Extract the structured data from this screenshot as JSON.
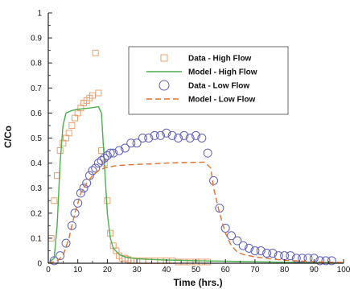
{
  "chart_data": {
    "type": "scatter",
    "xlabel": "Time (hrs.)",
    "ylabel": "C/Co",
    "xlim": [
      0,
      100
    ],
    "ylim": [
      0,
      1
    ],
    "x_ticks": [
      0,
      10,
      20,
      30,
      40,
      50,
      60,
      70,
      80,
      90,
      100
    ],
    "y_ticks": [
      0,
      0.1,
      0.2,
      0.3,
      0.4,
      0.5,
      0.6,
      0.7,
      0.8,
      0.9,
      1
    ],
    "x_tick_labels": [
      "0",
      "10",
      "20",
      "30",
      "40",
      "50",
      "60",
      "70",
      "80",
      "90",
      "100"
    ],
    "y_tick_labels": [
      "0",
      "0.1",
      "0.2",
      "0.3",
      "0.4",
      "0.5",
      "0.6",
      "0.7",
      "0.8",
      "0.9",
      "1"
    ],
    "grid": false,
    "legend_position": "top-right",
    "series": [
      {
        "name": "Data - High Flow",
        "kind": "scatter",
        "marker": "square",
        "color": "#e8a070",
        "x": [
          1,
          2,
          3,
          4,
          5,
          6,
          7,
          8,
          9,
          10,
          11,
          12,
          13,
          14,
          15,
          16,
          17,
          18,
          19,
          20,
          21,
          22,
          23,
          24,
          25,
          26,
          27,
          28,
          29,
          30,
          32,
          34,
          36,
          38,
          40,
          42,
          44,
          46,
          48,
          50,
          52,
          54
        ],
        "y": [
          0.1,
          0.25,
          0.35,
          0.45,
          0.48,
          0.5,
          0.52,
          0.55,
          0.58,
          0.6,
          0.62,
          0.64,
          0.65,
          0.66,
          0.67,
          0.84,
          0.68,
          0.45,
          0.4,
          0.25,
          0.12,
          0.07,
          0.05,
          0.03,
          0.02,
          0.02,
          0.015,
          0.01,
          0.01,
          0.01,
          0.01,
          0.01,
          0.01,
          0.01,
          0.01,
          0.01,
          0.005,
          0.005,
          0.005,
          0.005,
          0.005,
          0.005
        ]
      },
      {
        "name": "Model - High Flow",
        "kind": "line",
        "dash": "solid",
        "color": "#4caf50",
        "x": [
          0,
          2,
          3,
          4,
          5,
          6,
          8,
          10,
          14,
          17,
          18,
          19,
          20,
          21,
          22,
          24,
          26,
          30,
          35,
          40,
          50,
          60,
          70,
          80,
          90,
          100
        ],
        "y": [
          0,
          0.02,
          0.15,
          0.4,
          0.55,
          0.6,
          0.61,
          0.615,
          0.62,
          0.625,
          0.6,
          0.4,
          0.2,
          0.1,
          0.06,
          0.035,
          0.025,
          0.018,
          0.015,
          0.013,
          0.01,
          0.008,
          0.006,
          0.004,
          0.003,
          0.002
        ]
      },
      {
        "name": "Data - Low Flow",
        "kind": "scatter",
        "marker": "circle",
        "color": "#6060b8",
        "x": [
          2,
          4,
          6,
          8,
          9,
          10,
          11,
          12,
          13,
          14,
          15,
          16,
          17,
          18,
          19,
          20,
          21,
          22,
          24,
          26,
          28,
          30,
          32,
          34,
          36,
          38,
          40,
          42,
          44,
          46,
          48,
          50,
          52,
          54,
          56,
          58,
          60,
          62,
          64,
          66,
          68,
          70,
          72,
          74,
          76,
          78,
          80,
          82,
          84,
          86,
          88,
          90,
          92,
          94,
          96
        ],
        "y": [
          0.01,
          0.03,
          0.08,
          0.15,
          0.2,
          0.24,
          0.28,
          0.3,
          0.32,
          0.35,
          0.37,
          0.38,
          0.4,
          0.41,
          0.42,
          0.43,
          0.44,
          0.44,
          0.45,
          0.46,
          0.48,
          0.48,
          0.5,
          0.5,
          0.51,
          0.51,
          0.52,
          0.51,
          0.5,
          0.51,
          0.5,
          0.51,
          0.5,
          0.44,
          0.33,
          0.22,
          0.14,
          0.11,
          0.09,
          0.07,
          0.06,
          0.05,
          0.05,
          0.04,
          0.04,
          0.03,
          0.03,
          0.03,
          0.02,
          0.02,
          0.02,
          0.02,
          0.01,
          0.01,
          0.01
        ]
      },
      {
        "name": "Model - Low Flow",
        "kind": "line",
        "dash": "dashed",
        "color": "#e07030",
        "x": [
          0,
          3,
          5,
          7,
          9,
          11,
          13,
          15,
          17,
          19,
          21,
          23,
          26,
          30,
          35,
          40,
          45,
          50,
          53,
          55,
          56,
          58,
          60,
          62,
          64,
          66,
          70,
          75,
          80,
          90,
          100
        ],
        "y": [
          0,
          0.01,
          0.03,
          0.1,
          0.2,
          0.28,
          0.32,
          0.35,
          0.37,
          0.38,
          0.385,
          0.39,
          0.392,
          0.395,
          0.397,
          0.4,
          0.402,
          0.403,
          0.404,
          0.38,
          0.3,
          0.2,
          0.12,
          0.07,
          0.045,
          0.035,
          0.025,
          0.018,
          0.012,
          0.006,
          0.003
        ]
      }
    ]
  }
}
